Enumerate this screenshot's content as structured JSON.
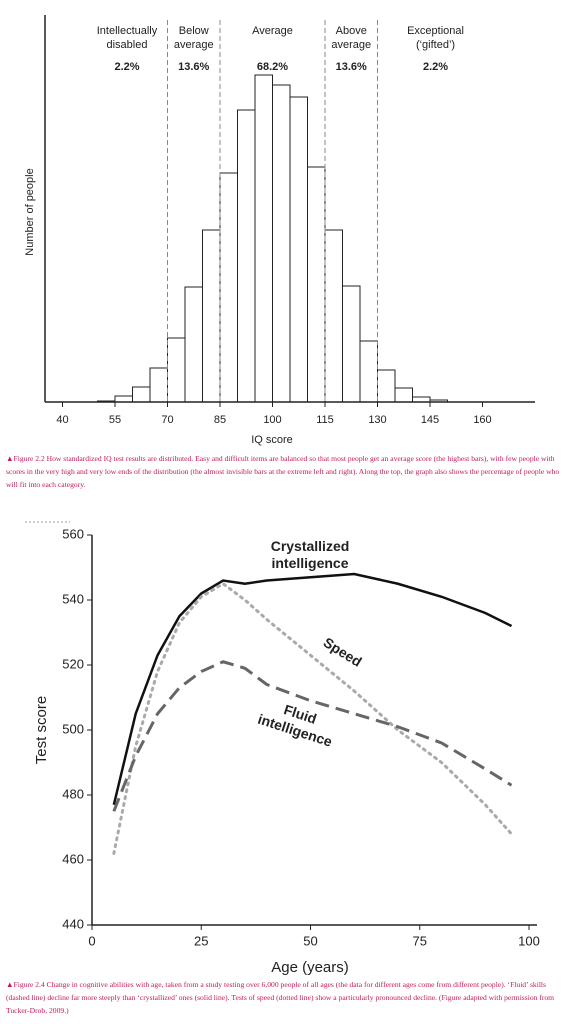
{
  "chart_data": [
    {
      "type": "histogram",
      "xlabel": "IQ score",
      "ylabel": "Number of people",
      "bins": [
        50,
        55,
        60,
        65,
        70,
        75,
        80,
        85,
        90,
        95,
        100,
        105,
        110,
        115,
        120,
        125,
        130,
        135,
        140,
        145,
        150
      ],
      "values": [
        1,
        6,
        15,
        34,
        64,
        115,
        172,
        229,
        292,
        327,
        317,
        305,
        235,
        172,
        116,
        61,
        32,
        14,
        5,
        2
      ],
      "color": "#ffffff",
      "xlim": [
        35,
        175
      ],
      "xticks": [
        40,
        55,
        70,
        85,
        100,
        115,
        130,
        145,
        160
      ],
      "ylim": [
        0,
        382
      ],
      "dividers": [
        70,
        85,
        115,
        130
      ],
      "annotations": [
        {
          "label": [
            "Intellectually",
            "disabled"
          ],
          "percent": "2.2%"
        },
        {
          "label": [
            "Below",
            "average"
          ],
          "percent": "13.6%"
        },
        {
          "label": [
            "Average"
          ],
          "percent": "68.2%"
        },
        {
          "label": [
            "Above",
            "average"
          ],
          "percent": "13.6%"
        },
        {
          "label": [
            "Exceptional",
            "(‘gifted’)"
          ],
          "percent": "2.2%"
        }
      ],
      "caption": "Figure 2.2  How standardized IQ test results are distributed. Easy and difficult items are balanced so that most people get an average score (the highest bars), with few people with scores in the very high and very low ends of the distribution (the almost invisible bars at the extreme left and right). Along the top, the graph also shows the percentage of people who will fit into each category."
    },
    {
      "type": "line",
      "xlabel": "Age (years)",
      "ylabel": "Test score",
      "x": [
        5,
        10,
        15,
        20,
        25,
        30,
        35,
        40,
        50,
        60,
        70,
        80,
        90,
        96
      ],
      "series": [
        {
          "name": "Crystallized intelligence",
          "color": "#111111",
          "style": "solid",
          "values": [
            477,
            505,
            523,
            535,
            542,
            546,
            545,
            546,
            547,
            548,
            545,
            541,
            536,
            532
          ]
        },
        {
          "name": "Speed",
          "color": "#aaaaaa",
          "style": "dotted",
          "values": [
            462,
            495,
            518,
            533,
            541,
            545,
            540,
            534,
            523,
            512,
            500,
            490,
            477,
            468
          ]
        },
        {
          "name": "Fluid intelligence",
          "color": "#666666",
          "style": "dashed",
          "values": [
            475,
            492,
            505,
            513,
            518,
            521,
            519,
            514,
            509,
            505,
            501,
            496,
            488,
            483
          ]
        }
      ],
      "xlim": [
        0,
        100
      ],
      "xticks": [
        0,
        25,
        50,
        75,
        100
      ],
      "ylim": [
        440,
        560
      ],
      "yticks": [
        440,
        460,
        480,
        500,
        520,
        540,
        560
      ],
      "caption": "Figure 2.4  Change in cognitive abilities with age, taken from a study testing over 6,000 people of all ages (the data for different ages come from different people). ‘Fluid’ skills (dashed line) decline far more steeply than ‘crystallized’ ones (solid line). Tests of speed (dotted line) show a particularly pronounced decline. (Figure adapted with permission from Tucker-Drob, 2009.)"
    }
  ]
}
